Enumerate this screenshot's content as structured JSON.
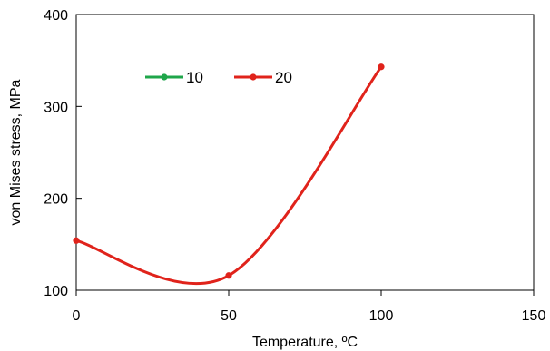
{
  "chart_data": {
    "type": "line",
    "xlabel": "Temperature, ºC",
    "ylabel": "von Mises stress, MPa",
    "xlim": [
      0,
      150
    ],
    "ylim": [
      100,
      400
    ],
    "xticks": [
      0,
      50,
      100,
      150
    ],
    "yticks": [
      100,
      200,
      300,
      400
    ],
    "grid": false,
    "legend_position": "top-left",
    "smooth": true,
    "series": [
      {
        "name": "10",
        "color": "#1fa64a",
        "x": [],
        "y": []
      },
      {
        "name": "20",
        "color": "#e0231b",
        "x": [
          0,
          50,
          100
        ],
        "y": [
          154,
          116,
          343
        ]
      }
    ]
  }
}
